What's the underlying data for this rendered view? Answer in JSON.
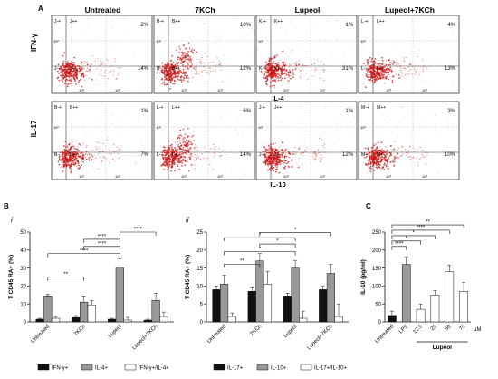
{
  "panel_labels": {
    "A": "A",
    "B": "B",
    "C": "C",
    "Bi": "i",
    "Bii": "ii"
  },
  "flow": {
    "column_titles": [
      "Untreated",
      "7KCh",
      "Lupeol",
      "Lupeol+7KCh"
    ],
    "row_axis_labels": [
      "IFN-γ",
      "IL-17"
    ],
    "row_bottom_labels": [
      "IL-4",
      "IL-10"
    ],
    "tick_label": "10³",
    "tick_label_low": "10²",
    "rows": [
      [
        {
          "ul": "J-+",
          "ur": "J++",
          "ll": "J--",
          "lr": "J+-",
          "pct_ur": "2%",
          "pct_lr": "14%",
          "hot": 0
        },
        {
          "ul": "B-+",
          "ur": "B++",
          "ll": "B--",
          "lr": "B+-",
          "pct_ur": "10%",
          "pct_lr": "12%",
          "hot": 1
        },
        {
          "ul": "K-+",
          "ur": "K++",
          "ll": "K--",
          "lr": "K+-",
          "pct_ur": "1%",
          "pct_lr": "31%",
          "hot": 0
        },
        {
          "ul": "L-+",
          "ur": "L++",
          "ll": "L--",
          "lr": "L+-",
          "pct_ur": "4%",
          "pct_lr": "13%",
          "hot": 0
        }
      ],
      [
        {
          "ul": "B-+",
          "ur": "B++",
          "ll": "B--",
          "lr": "B+-",
          "pct_ur": "1%",
          "pct_lr": "7%",
          "hot": 0
        },
        {
          "ul": "L-+",
          "ur": "L++",
          "ll": "L--",
          "lr": "L+-",
          "pct_ur": "6%",
          "pct_lr": "14%",
          "hot": 1
        },
        {
          "ul": "J-+",
          "ur": "J++",
          "ll": "J--",
          "lr": "J+-",
          "pct_ur": "1%",
          "pct_lr": "12%",
          "hot": 0
        },
        {
          "ul": "M-+",
          "ur": "M++",
          "ll": "M--",
          "lr": "M+-",
          "pct_ur": "3%",
          "pct_lr": "10%",
          "hot": 0
        }
      ]
    ]
  },
  "chart_data": [
    {
      "id": "Bi",
      "type": "bar",
      "ylabel": "T CD45 RA+ (%)",
      "ylim": [
        0,
        50
      ],
      "yticks": [
        0,
        10,
        20,
        30,
        40,
        50
      ],
      "categories": [
        "Untreated",
        "7KCh",
        "Lupeol",
        "Lupeol+7KCh"
      ],
      "series": [
        {
          "name": "IFN-γ+",
          "color": "#111111",
          "values": [
            1.5,
            2.5,
            1.5,
            1
          ],
          "errors": [
            0.5,
            1,
            0.5,
            0.5
          ]
        },
        {
          "name": "IL-4+",
          "color": "#999999",
          "values": [
            14,
            11,
            30,
            12
          ],
          "errors": [
            1.5,
            3,
            5,
            4
          ]
        },
        {
          "name": "IFN-γ+/IL-4+",
          "color": "#ffffff",
          "values": [
            2,
            9.5,
            1,
            3
          ],
          "errors": [
            1,
            2.5,
            1.5,
            2.5
          ]
        }
      ],
      "significance": [
        {
          "label": "**",
          "from": "Untreated",
          "to": "7KCh"
        },
        {
          "label": "****",
          "from": "Untreated",
          "to": "Lupeol"
        },
        {
          "label": "****",
          "from": "7KCh",
          "to": "Lupeol"
        },
        {
          "label": "****",
          "from": "7KCh",
          "to": "Lupeol"
        },
        {
          "label": "****",
          "from": "Lupeol",
          "to": "Lupeol+7KCh"
        }
      ]
    },
    {
      "id": "Bii",
      "type": "bar",
      "ylabel": "T CD45 RA+ (%)",
      "ylim": [
        0,
        25
      ],
      "yticks": [
        0,
        5,
        10,
        15,
        20,
        25
      ],
      "categories": [
        "Untreated",
        "7KCh",
        "Lupeol",
        "Lupeol+7KCh"
      ],
      "series": [
        {
          "name": "IL-17+",
          "color": "#111111",
          "values": [
            9,
            8.5,
            7,
            9
          ],
          "errors": [
            1,
            1,
            1,
            1
          ]
        },
        {
          "name": "IL-10+",
          "color": "#999999",
          "values": [
            10.5,
            17,
            15,
            13.5
          ],
          "errors": [
            2.5,
            2,
            2,
            2.5
          ]
        },
        {
          "name": "IL-17+/IL-10+",
          "color": "#ffffff",
          "values": [
            1.5,
            10.5,
            1,
            1.5
          ],
          "errors": [
            1,
            3.5,
            2,
            3.5
          ]
        }
      ],
      "significance": [
        {
          "label": "**",
          "from": "Untreated",
          "to": "7KCh"
        },
        {
          "label": "*",
          "from": "Untreated",
          "to": "Lupeol"
        },
        {
          "label": "*",
          "from": "7KCh",
          "to": "Lupeol"
        },
        {
          "label": "*",
          "from": "Untreated",
          "to": "Lupeol"
        },
        {
          "label": "*",
          "from": "7KCh",
          "to": "Lupeol+7KCh"
        }
      ]
    },
    {
      "id": "C",
      "type": "bar",
      "ylabel": "IL-10 (pg/ml)",
      "ylim": [
        0,
        250
      ],
      "yticks": [
        0,
        50,
        100,
        150,
        200,
        250
      ],
      "categories": [
        "Untreated",
        "LPS",
        "12.5",
        "25",
        "50",
        "75"
      ],
      "colors": [
        "#111111",
        "#999999",
        "#ffffff",
        "#ffffff",
        "#ffffff",
        "#ffffff"
      ],
      "values": [
        18,
        160,
        35,
        75,
        140,
        85
      ],
      "errors": [
        12,
        20,
        15,
        12,
        18,
        25
      ],
      "group_label": "Lupeol",
      "unit_label": "μM",
      "significance": [
        {
          "label": "****",
          "from": "Untreated",
          "to": "LPS"
        },
        {
          "label": "*",
          "from": "Untreated",
          "to": "12.5"
        },
        {
          "label": "*",
          "from": "Untreated",
          "to": "25"
        },
        {
          "label": "****",
          "from": "Untreated",
          "to": "50"
        },
        {
          "label": "**",
          "from": "Untreated",
          "to": "75"
        }
      ]
    }
  ]
}
